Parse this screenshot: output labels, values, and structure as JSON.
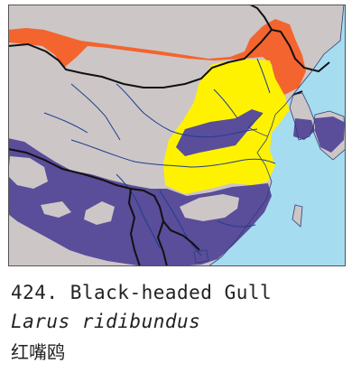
{
  "caption": {
    "number": "424.",
    "common_name": "Black-headed Gull",
    "scientific_name": "Larus ridibundus",
    "chinese_name": "红嘴鸥"
  },
  "legend_colors": {
    "sea": "#a6dcf0",
    "land": "#cdc6c6",
    "breeding": "#f4642e",
    "resident": "#fff200",
    "winter": "#5a4d9a",
    "border": "#111111",
    "river": "#1d3f8f"
  }
}
